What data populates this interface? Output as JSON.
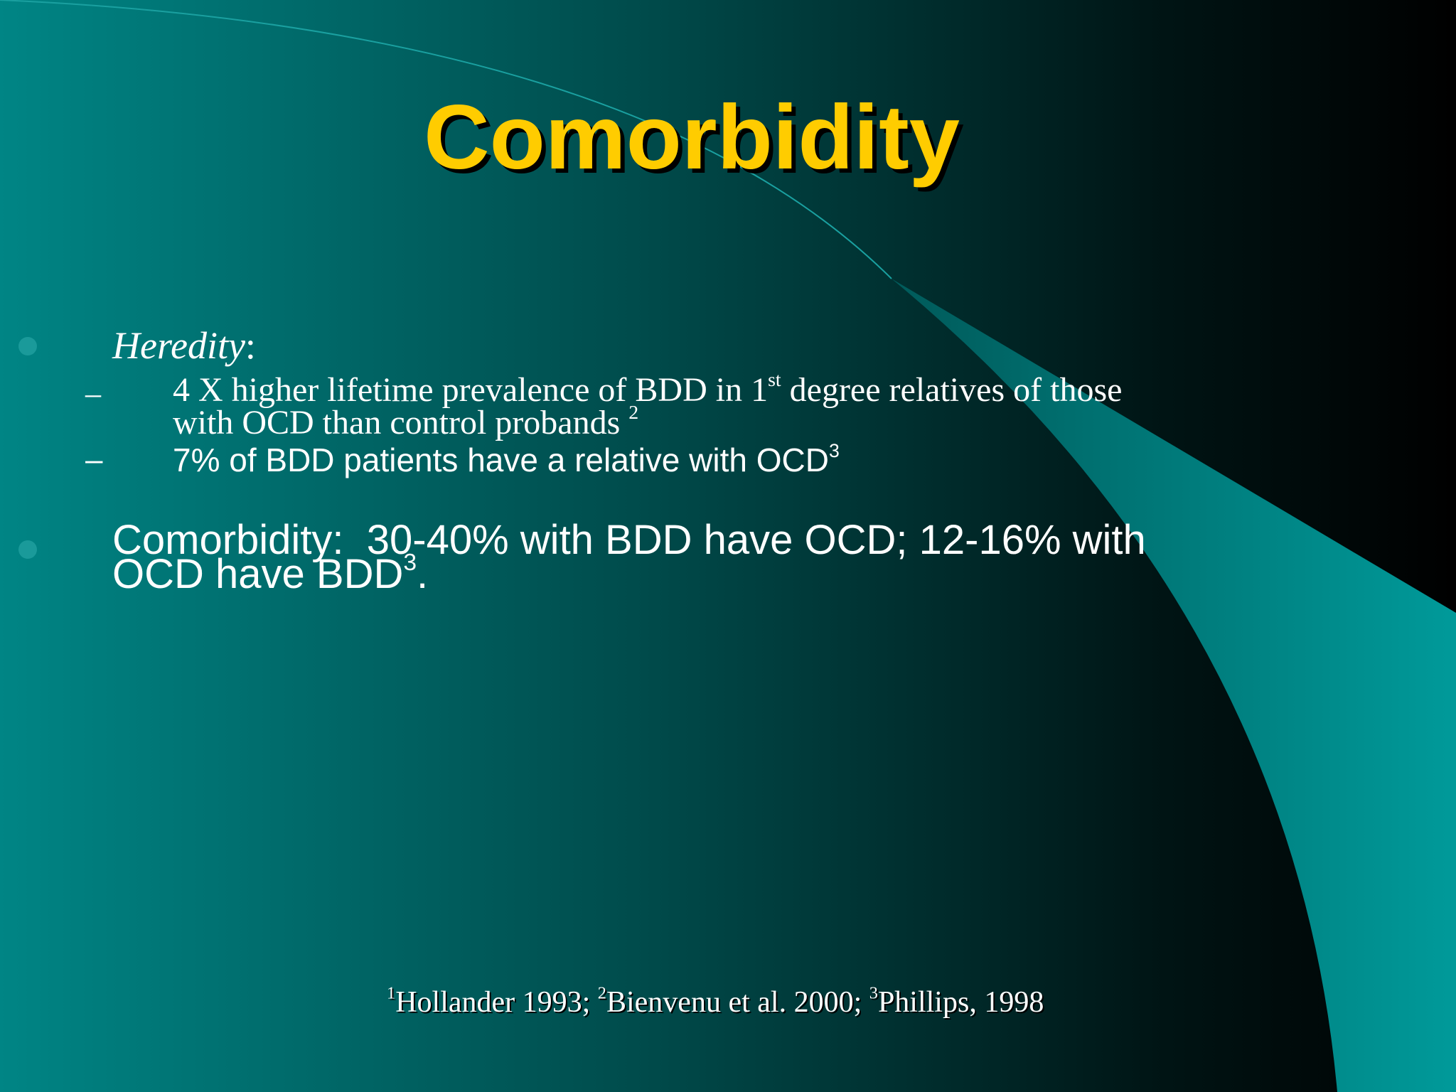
{
  "slide": {
    "title": "Comorbidity",
    "bullets": [
      {
        "label": "Heredity",
        "suffix": ":",
        "subitems": [
          {
            "lines": [
              [
                "4 X higher lifetime prevalence of BDD in 1",
                "st",
                " degree relatives of those"
              ],
              [
                "with OCD than control probands ",
                "2"
              ]
            ]
          },
          {
            "lines": [
              [
                "7% of BDD patients have a relative with OCD",
                "3"
              ]
            ]
          }
        ]
      },
      {
        "lines": [
          [
            "Comorbidity:  30-40% with BDD have OCD; 12-16% with"
          ],
          [
            "OCD have BDD",
            "3",
            "."
          ]
        ]
      }
    ],
    "footnote": [
      "1",
      "Hollander 1993; ",
      "2",
      "Bienvenu et al. 2000; ",
      "3",
      "Phillips, 1998"
    ]
  }
}
